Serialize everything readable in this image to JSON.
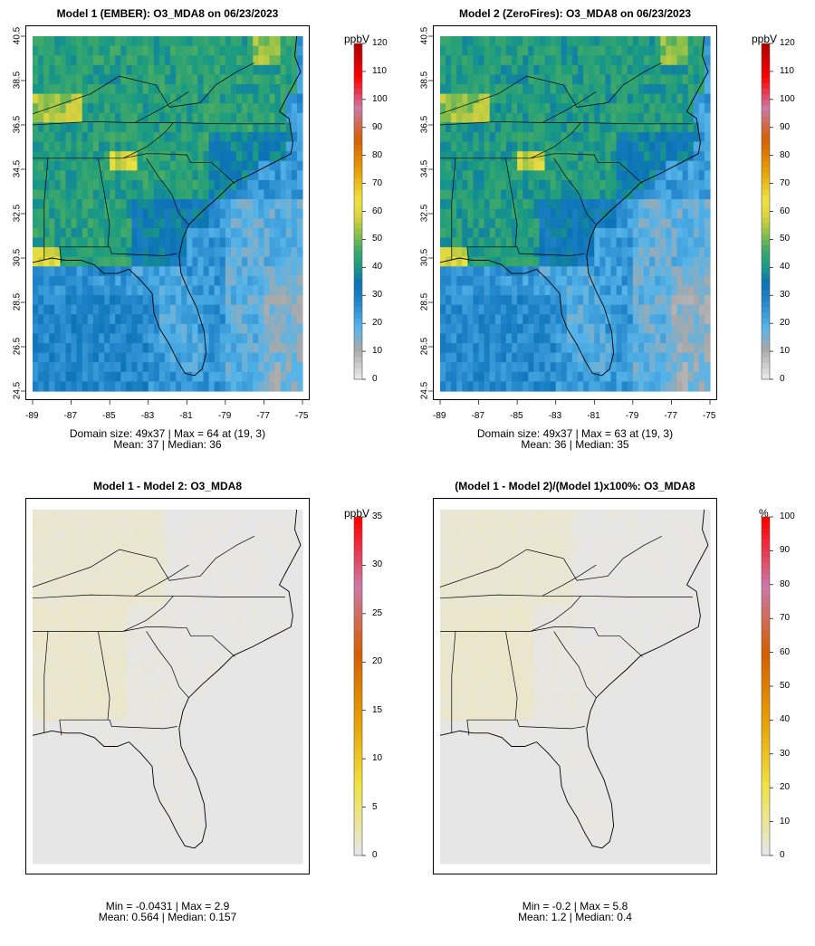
{
  "panels": [
    {
      "id": "p1",
      "title": "Model 1 (EMBER): O3_MDA8 on 06/23/2023",
      "stats_line1": "Domain size: 49x37 | Max = 64 at (19, 3)",
      "stats_line2": "Mean: 37 |  Median: 36",
      "unit": "ppbV",
      "colorbar_ticks": [
        "0",
        "10",
        "20",
        "30",
        "40",
        "50",
        "60",
        "70",
        "80",
        "90",
        "100",
        "110",
        "120"
      ],
      "colorbar_max": 120,
      "map_type": "ozone"
    },
    {
      "id": "p2",
      "title": "Model 2 (ZeroFires): O3_MDA8 on 06/23/2023",
      "stats_line1": "Domain size: 49x37 | Max = 63 at (19, 3)",
      "stats_line2": "Mean: 36 |  Median: 35",
      "unit": "ppbV",
      "colorbar_ticks": [
        "0",
        "10",
        "20",
        "30",
        "40",
        "50",
        "60",
        "70",
        "80",
        "90",
        "100",
        "110",
        "120"
      ],
      "colorbar_max": 120,
      "map_type": "ozone"
    },
    {
      "id": "p3",
      "title": "Model 1 - Model 2: O3_MDA8",
      "stats_line1": "Min = -0.0431 | Max = 2.9",
      "stats_line2": "Mean: 0.564 |  Median: 0.157",
      "unit": "ppbV",
      "colorbar_ticks": [
        "0",
        "5",
        "10",
        "15",
        "20",
        "25",
        "30",
        "35"
      ],
      "colorbar_max": 35,
      "map_type": "diff"
    },
    {
      "id": "p4",
      "title": "(Model 1 - Model 2)/(Model 1)x100%: O3_MDA8",
      "stats_line1": "Min = -0.2 | Max = 5.8",
      "stats_line2": "Mean: 1.2 |  Median: 0.4",
      "unit": "%",
      "colorbar_ticks": [
        "0",
        "10",
        "20",
        "30",
        "40",
        "50",
        "60",
        "70",
        "80",
        "90",
        "100"
      ],
      "colorbar_max": 100,
      "map_type": "diff"
    }
  ],
  "axes": {
    "lat_ticks": [
      "24.5",
      "26.5",
      "28.5",
      "30.5",
      "32.5",
      "34.5",
      "36.5",
      "38.5",
      "40.5"
    ],
    "lon_ticks": [
      "-89",
      "-87",
      "-85",
      "-83",
      "-81",
      "-79",
      "-77",
      "-75"
    ]
  },
  "colors": {
    "ozone_scale": [
      "#e6e6e6",
      "#9e9e9e",
      "#56b4e9",
      "#0072b2",
      "#009e73",
      "#6cb43f",
      "#f0e442",
      "#e69f00",
      "#d55e00",
      "#cc79a7",
      "#ff0000",
      "#b30000"
    ],
    "diff_scale": [
      "#e6e6e6",
      "#f0e442",
      "#e69f00",
      "#d55e00",
      "#cc79a7",
      "#ff0000"
    ]
  }
}
